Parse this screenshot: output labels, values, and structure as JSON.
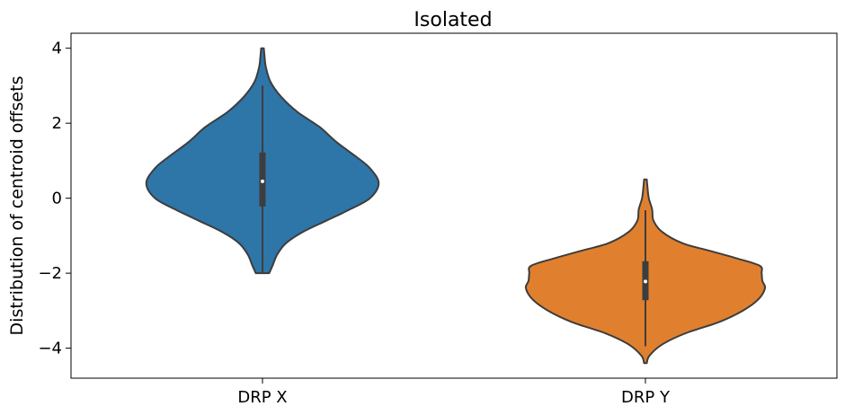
{
  "chart_data": {
    "type": "violin",
    "title": "Isolated",
    "xlabel": "",
    "ylabel": "Distribution of centroid offsets",
    "ylim": [
      -4.8,
      4.4
    ],
    "yticks": [
      -4,
      -2,
      0,
      2,
      4
    ],
    "grid": false,
    "categories": [
      "DRP X",
      "DRP Y"
    ],
    "colors": {
      "DRP X": "#2e75a8",
      "DRP Y": "#e0802e",
      "outline": "#3d3d3d"
    },
    "series": [
      {
        "category": "DRP X",
        "min": -2.0,
        "q1": -0.22,
        "median": 0.45,
        "q3": 1.22,
        "max": 4.0,
        "whisker_low": -2.0,
        "whisker_high": 3.0,
        "density_profile": [
          [
            -2.0,
            0.1
          ],
          [
            -1.8,
            0.15
          ],
          [
            -1.5,
            0.22
          ],
          [
            -1.2,
            0.35
          ],
          [
            -0.9,
            0.6
          ],
          [
            -0.6,
            0.95
          ],
          [
            -0.3,
            1.3
          ],
          [
            0.0,
            1.6
          ],
          [
            0.4,
            1.73
          ],
          [
            0.8,
            1.6
          ],
          [
            1.1,
            1.4
          ],
          [
            1.5,
            1.1
          ],
          [
            1.9,
            0.85
          ],
          [
            2.3,
            0.52
          ],
          [
            2.7,
            0.28
          ],
          [
            3.1,
            0.12
          ],
          [
            3.5,
            0.05
          ],
          [
            3.8,
            0.03
          ],
          [
            4.0,
            0.02
          ]
        ]
      },
      {
        "category": "DRP Y",
        "min": -4.4,
        "q1": -2.72,
        "median": -2.22,
        "q3": -1.68,
        "max": 0.5,
        "whisker_low": -3.95,
        "whisker_high": -0.32,
        "density_profile": [
          [
            -4.4,
            0.02
          ],
          [
            -4.2,
            0.06
          ],
          [
            -3.9,
            0.25
          ],
          [
            -3.6,
            0.6
          ],
          [
            -3.3,
            1.1
          ],
          [
            -3.0,
            1.45
          ],
          [
            -2.7,
            1.68
          ],
          [
            -2.4,
            1.78
          ],
          [
            -2.2,
            1.74
          ],
          [
            -2.0,
            1.73
          ],
          [
            -1.8,
            1.7
          ],
          [
            -1.6,
            1.35
          ],
          [
            -1.4,
            0.95
          ],
          [
            -1.2,
            0.55
          ],
          [
            -0.9,
            0.25
          ],
          [
            -0.6,
            0.12
          ],
          [
            -0.3,
            0.1
          ],
          [
            0.0,
            0.05
          ],
          [
            0.3,
            0.03
          ],
          [
            0.5,
            0.02
          ]
        ]
      }
    ]
  }
}
